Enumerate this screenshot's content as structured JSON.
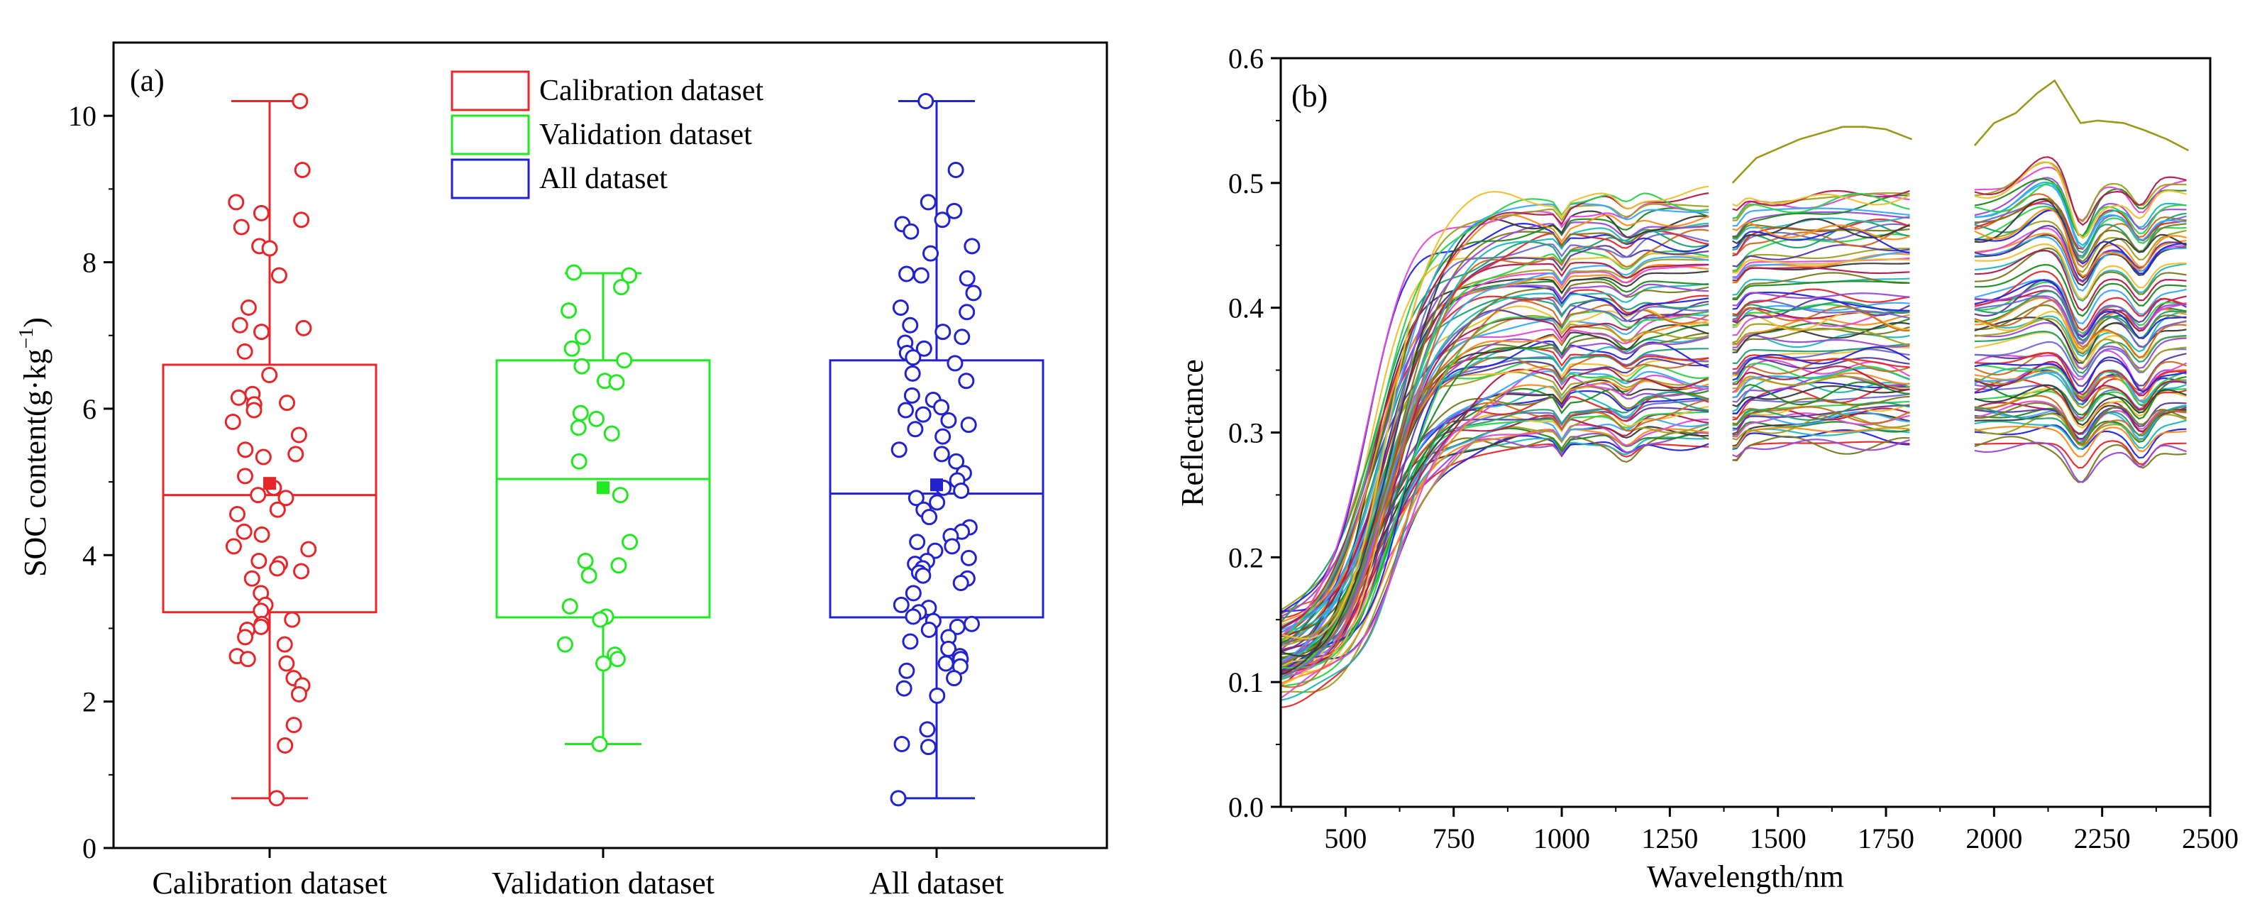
{
  "chart_data": [
    {
      "type": "box",
      "panel_label": "(a)",
      "ylabel": "SOC content(g·kg",
      "ylabel_sup": "−1",
      "ylabel_close": ")",
      "ylim": [
        0,
        11
      ],
      "yticks": [
        0,
        2,
        4,
        6,
        8,
        10
      ],
      "categories": [
        "Calibration dataset",
        "Validation dataset",
        "All dataset"
      ],
      "legend": [
        {
          "label": "Calibration dataset",
          "color": "#e8262a"
        },
        {
          "label": "Validation dataset",
          "color": "#22e822"
        },
        {
          "label": "All dataset",
          "color": "#2222d0"
        }
      ],
      "series": [
        {
          "name": "Calibration dataset",
          "color": "#e8262a",
          "min": 0.68,
          "q1": 3.22,
          "median": 4.82,
          "q3": 6.6,
          "max": 10.2,
          "mean": 4.98,
          "points": [
            10.2,
            9.26,
            8.82,
            8.67,
            8.58,
            8.48,
            8.22,
            8.19,
            7.82,
            7.38,
            7.14,
            7.1,
            7.05,
            6.78,
            6.46,
            6.2,
            6.15,
            6.08,
            6.06,
            5.98,
            5.82,
            5.64,
            5.44,
            5.38,
            5.34,
            5.08,
            4.92,
            4.82,
            4.78,
            4.62,
            4.56,
            4.32,
            4.28,
            4.12,
            4.08,
            3.92,
            3.88,
            3.82,
            3.78,
            3.68,
            3.48,
            3.32,
            3.24,
            3.12,
            3.06,
            3.02,
            2.98,
            2.88,
            2.78,
            2.62,
            2.58,
            2.52,
            2.32,
            2.22,
            2.1,
            1.68,
            1.4,
            0.68
          ]
        },
        {
          "name": "Validation dataset",
          "color": "#22e822",
          "min": 1.42,
          "q1": 3.15,
          "median": 5.04,
          "q3": 6.66,
          "max": 7.85,
          "mean": 4.92,
          "points": [
            7.86,
            7.82,
            7.66,
            7.34,
            6.98,
            6.82,
            6.66,
            6.58,
            6.38,
            6.36,
            5.94,
            5.86,
            5.74,
            5.66,
            5.28,
            4.82,
            4.18,
            3.92,
            3.86,
            3.72,
            3.3,
            3.16,
            3.12,
            2.78,
            2.64,
            2.58,
            2.52,
            1.42
          ]
        },
        {
          "name": "All dataset",
          "color": "#2222d0",
          "min": 0.68,
          "q1": 3.15,
          "median": 4.84,
          "q3": 6.66,
          "max": 10.2,
          "mean": 4.96,
          "points": [
            10.2,
            9.26,
            8.82,
            8.7,
            8.58,
            8.52,
            8.42,
            8.22,
            8.12,
            7.84,
            7.82,
            7.78,
            7.58,
            7.38,
            7.32,
            7.14,
            7.05,
            6.98,
            6.9,
            6.82,
            6.76,
            6.7,
            6.62,
            6.48,
            6.38,
            6.18,
            6.12,
            6.02,
            5.98,
            5.92,
            5.84,
            5.78,
            5.72,
            5.62,
            5.44,
            5.38,
            5.28,
            5.12,
            5.02,
            4.92,
            4.88,
            4.78,
            4.72,
            4.62,
            4.52,
            4.38,
            4.32,
            4.26,
            4.18,
            4.12,
            4.06,
            3.96,
            3.92,
            3.88,
            3.82,
            3.76,
            3.72,
            3.68,
            3.62,
            3.48,
            3.32,
            3.28,
            3.22,
            3.16,
            3.1,
            3.06,
            3.02,
            2.98,
            2.88,
            2.82,
            2.72,
            2.62,
            2.58,
            2.52,
            2.48,
            2.42,
            2.32,
            2.18,
            2.08,
            1.62,
            1.42,
            1.38,
            0.68
          ]
        }
      ]
    },
    {
      "type": "line",
      "panel_label": "(b)",
      "xlabel": "Wavelength/nm",
      "ylabel": "Reflectance",
      "xlim": [
        350,
        2500
      ],
      "ylim": [
        0.0,
        0.6
      ],
      "xticks": [
        500,
        750,
        1000,
        1250,
        1500,
        1750,
        2000,
        2250,
        2500
      ],
      "yticks": [
        0.0,
        0.1,
        0.2,
        0.3,
        0.4,
        0.5,
        0.6
      ],
      "segments": [
        [
          350,
          1345
        ],
        [
          1395,
          1810
        ],
        [
          1955,
          2450
        ]
      ],
      "spectrum_count": 86,
      "plateau_range": [
        0.29,
        0.5
      ],
      "outlier_spectrum": {
        "x": [
          1395,
          1450,
          1550,
          1650,
          1700,
          1750,
          1810,
          1955,
          2000,
          2050,
          2100,
          2140,
          2200,
          2240,
          2300,
          2350,
          2400,
          2450
        ],
        "y": [
          0.5,
          0.52,
          0.535,
          0.545,
          0.545,
          0.543,
          0.535,
          0.53,
          0.548,
          0.556,
          0.572,
          0.582,
          0.548,
          0.55,
          0.548,
          0.542,
          0.535,
          0.526
        ]
      },
      "palette": [
        "#e6262a",
        "#2424e0",
        "#20b8b8",
        "#7a7a20",
        "#9a4ad6",
        "#1e8a1e",
        "#3a3a3a",
        "#ff8a1a",
        "#e24ad6",
        "#a0a020",
        "#38a8ff",
        "#b01a4a",
        "#2ad24a",
        "#f0c030",
        "#5a3aa0",
        "#d06a20",
        "#6a6ad6",
        "#20a070"
      ]
    }
  ]
}
